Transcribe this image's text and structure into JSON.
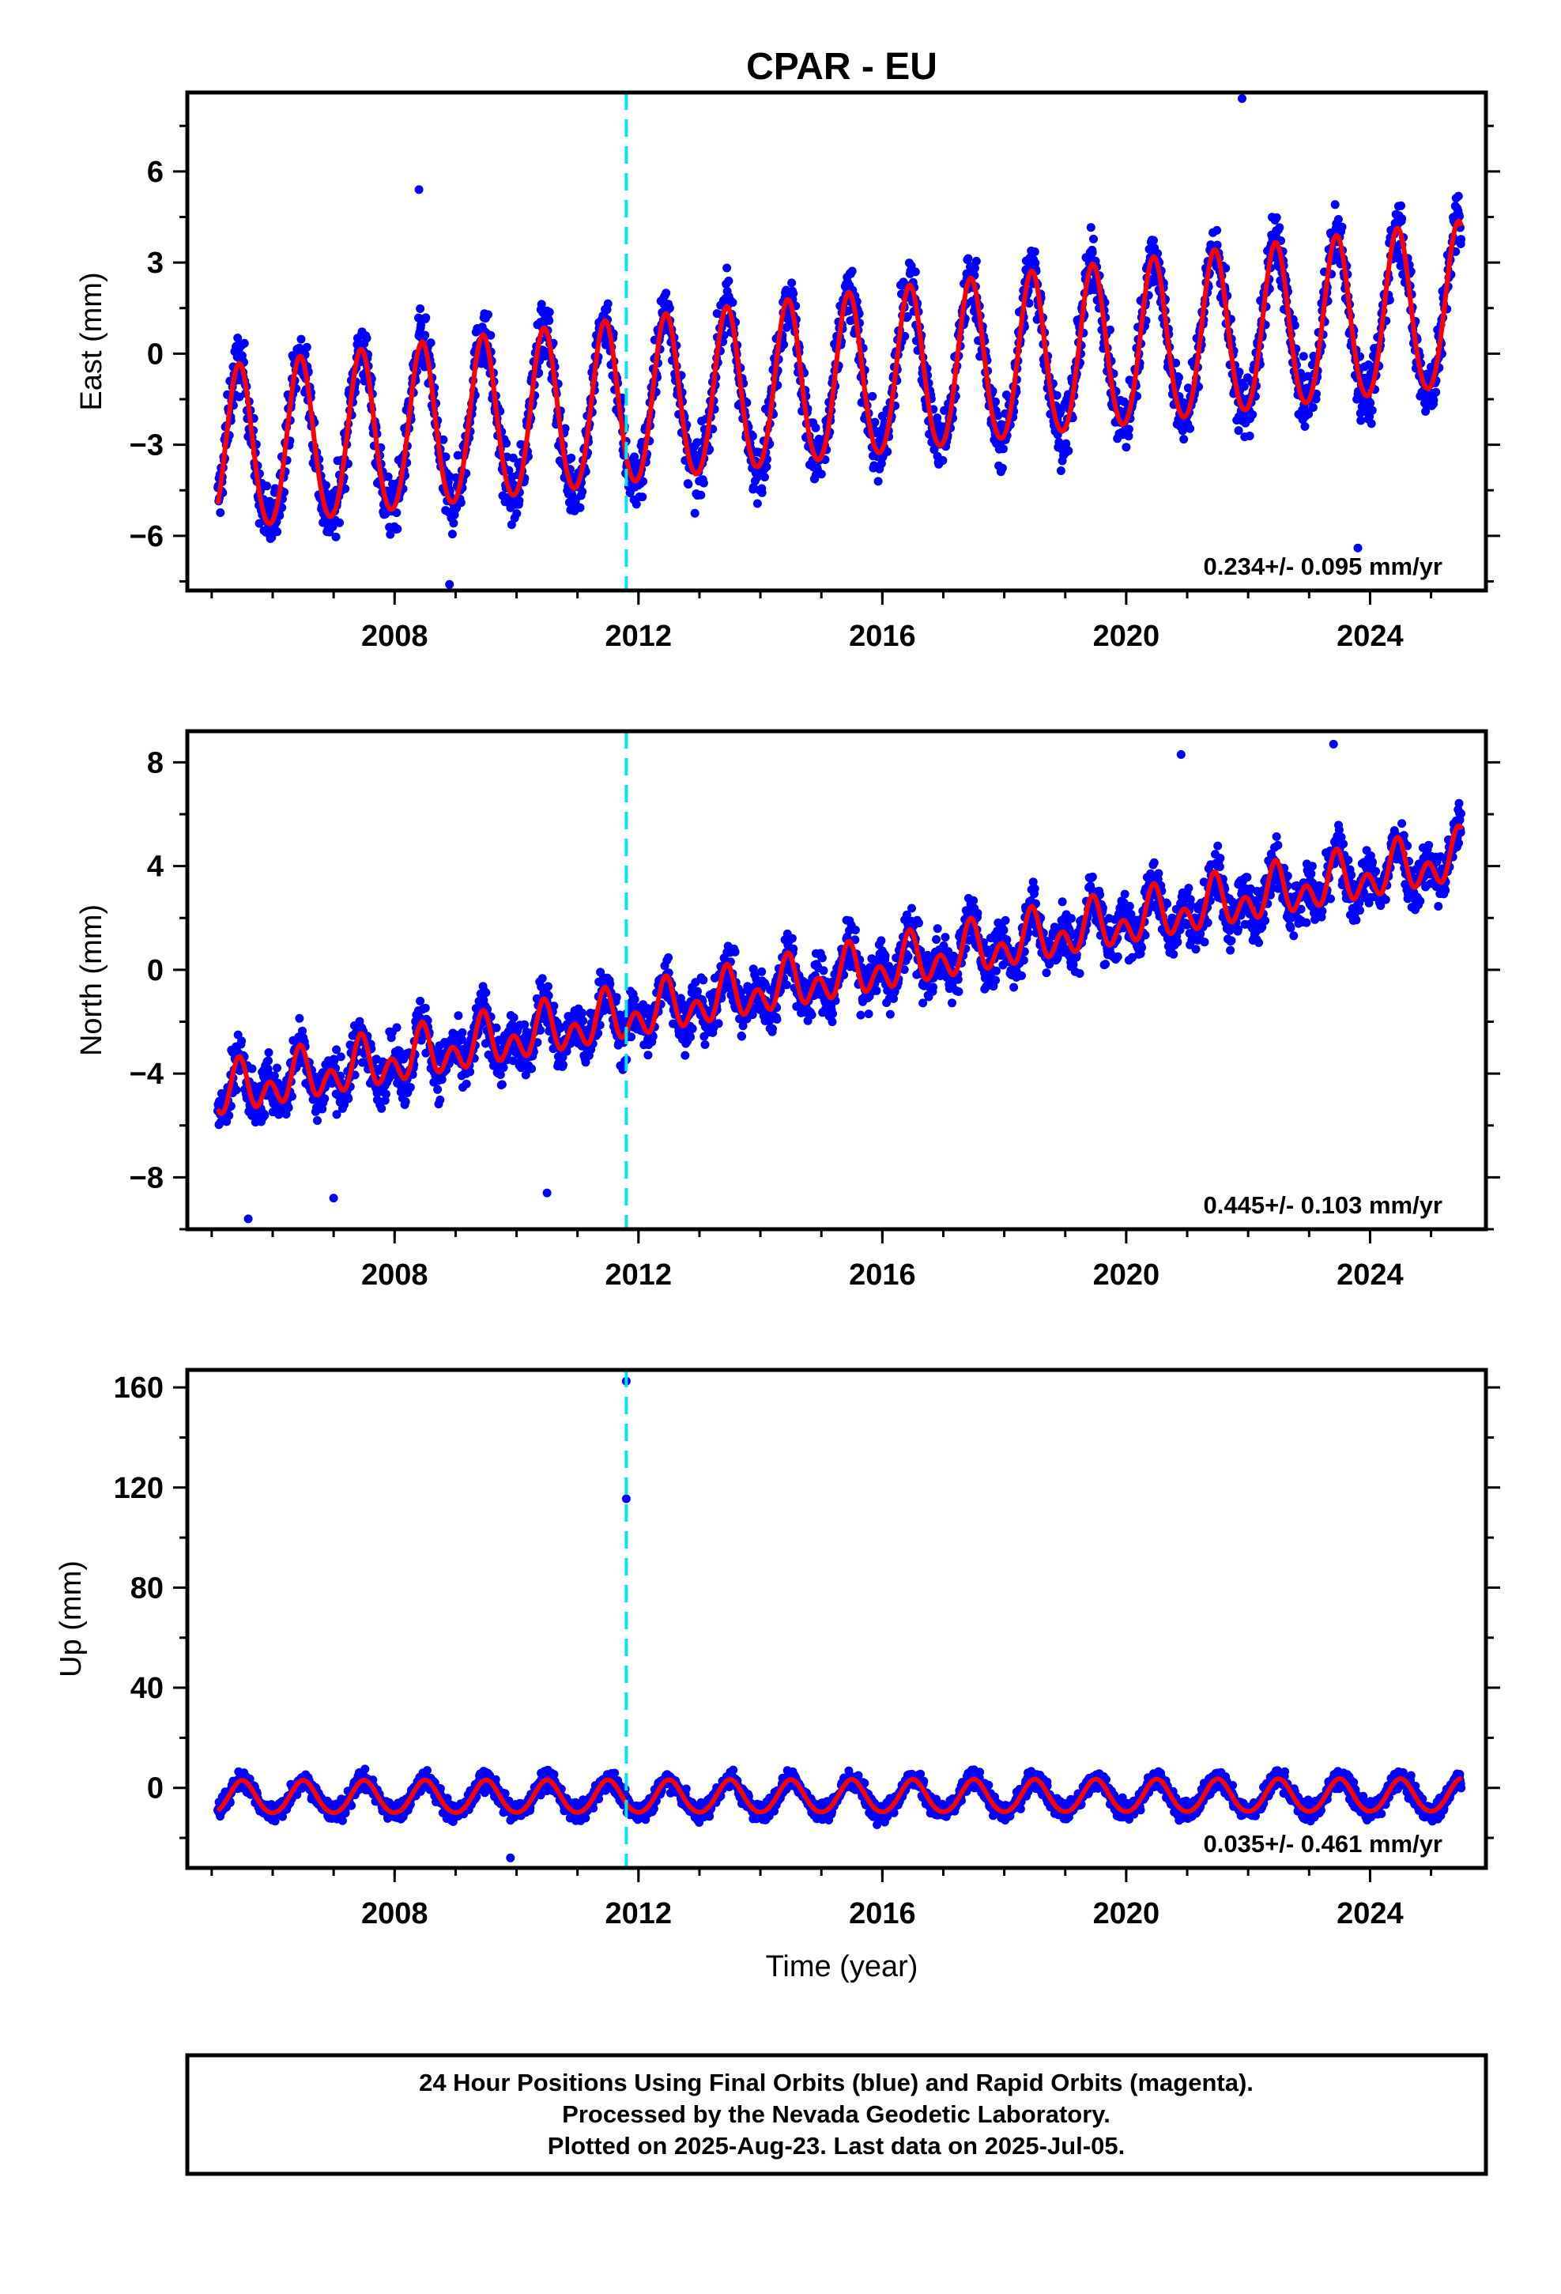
{
  "title": "CPAR - EU",
  "xlabel": "Time (year)",
  "footer": {
    "line1": "24 Hour Positions Using Final Orbits (blue) and Rapid Orbits (magenta).",
    "line2": "Processed by the Nevada Geodetic Laboratory.",
    "line3": "Plotted on 2025-Aug-23. Last data on 2025-Jul-05."
  },
  "colors": {
    "points": "#0000ff",
    "fit": "#ff0000",
    "event_line": "#00e5ee",
    "frame": "#000000"
  },
  "chart_data": [
    {
      "type": "scatter",
      "ylabel": "East (mm)",
      "xlim": [
        2004.6,
        2025.9
      ],
      "ylim": [
        -7.8,
        8.6
      ],
      "xticks": [
        2008,
        2012,
        2016,
        2020,
        2024
      ],
      "yticks": [
        -6,
        -3,
        0,
        3,
        6
      ],
      "rate_label": "0.234+/- 0.095 mm/yr",
      "event_line_x": 2011.8,
      "series": [
        {
          "kind": "points",
          "fit": {
            "start": [
              2005.1,
              -3.3
            ],
            "slope": 0.234,
            "amp1": 2.7,
            "amp2": 0.2,
            "phase_peak": 0.45
          },
          "noise": 1.3,
          "outliers": [
            [
              2008.9,
              -7.6
            ],
            [
              2021.9,
              8.4
            ],
            [
              2023.8,
              -6.4
            ],
            [
              2008.4,
              5.4
            ]
          ]
        },
        {
          "kind": "fit",
          "name": ""
        }
      ]
    },
    {
      "type": "scatter",
      "ylabel": "North (mm)",
      "xlim": [
        2004.6,
        2025.9
      ],
      "ylim": [
        -10.0,
        9.2
      ],
      "xticks": [
        2008,
        2012,
        2016,
        2020,
        2024
      ],
      "yticks": [
        -8,
        -4,
        0,
        4,
        8
      ],
      "rate_label": "0.445+/- 0.103 mm/yr",
      "event_line_x": 2011.8,
      "series": [
        {
          "kind": "points",
          "fit": {
            "start": [
              2005.1,
              -4.8
            ],
            "slope": 0.445,
            "amp1": 0.6,
            "amp2": 0.7,
            "phase_peak": 0.45
          },
          "noise": 1.3,
          "outliers": [
            [
              2005.6,
              -9.6
            ],
            [
              2007.0,
              -8.8
            ],
            [
              2010.5,
              -8.6
            ],
            [
              2020.9,
              8.3
            ],
            [
              2023.4,
              8.7
            ]
          ]
        },
        {
          "kind": "fit",
          "name": ""
        }
      ]
    },
    {
      "type": "scatter",
      "ylabel": "Up (mm)",
      "xlim": [
        2004.6,
        2025.9
      ],
      "ylim": [
        -32,
        167
      ],
      "xticks": [
        2008,
        2012,
        2016,
        2020,
        2024
      ],
      "yticks": [
        0,
        40,
        80,
        120,
        160
      ],
      "rate_label": "0.035+/- 0.461 mm/yr",
      "event_line_x": 2011.8,
      "series": [
        {
          "kind": "points",
          "fit": {
            "start": [
              2005.1,
              -4.0
            ],
            "slope": 0.035,
            "amp1": 6.5,
            "amp2": 0.5,
            "phase_peak": 0.5
          },
          "noise": 5.0,
          "outliers": [
            [
              2011.8,
              162.5
            ],
            [
              2011.8,
              115.5
            ],
            [
              2009.9,
              -28.0
            ]
          ]
        },
        {
          "kind": "fit",
          "name": ""
        }
      ]
    }
  ]
}
